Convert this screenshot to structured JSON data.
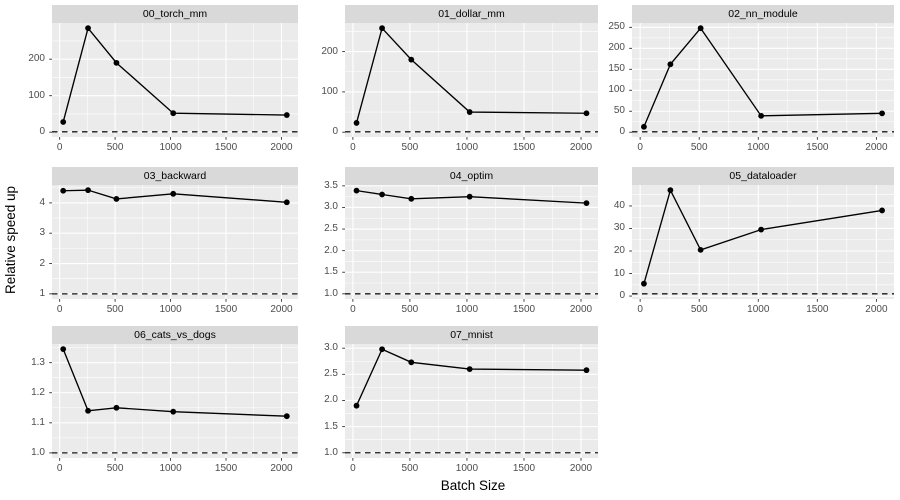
{
  "colors": {
    "panel_bg": "#EBEBEB",
    "strip_bg": "#D9D9D9",
    "grid": "#FFFFFF",
    "line": "#000000",
    "point": "#000000",
    "reference": "#1a1a1a",
    "tick_text": "#4D4D4D",
    "tick_mark": "#333333",
    "title_text": "#000000"
  },
  "chart_data": {
    "type": "line",
    "title": "",
    "xlabel": "Batch Size",
    "ylabel": "Relative speed up",
    "grid": true,
    "legend": false,
    "x": [
      32,
      256,
      512,
      1024,
      2048
    ],
    "xlim": [
      -69,
      2149
    ],
    "xticks": [
      0,
      500,
      1000,
      1500,
      2000
    ],
    "xtick_labels": [
      "0",
      "500",
      "1000",
      "1500",
      "2000"
    ],
    "x_minor": [
      250,
      750,
      1250,
      1750
    ],
    "reference_line_y": 1,
    "reference_line_style": "dashed",
    "facets": [
      {
        "title": "00_torch_mm",
        "values": [
          28,
          285,
          190,
          52,
          47
        ],
        "ylim": [
          -13.2,
          299.2
        ],
        "yticks": [
          0,
          100,
          200
        ],
        "ytick_labels": [
          "0",
          "100",
          "200"
        ]
      },
      {
        "title": "01_dollar_mm",
        "values": [
          23,
          258,
          180,
          50,
          47
        ],
        "ylim": [
          -11.9,
          270.9
        ],
        "yticks": [
          0,
          100,
          200
        ],
        "ytick_labels": [
          "0",
          "100",
          "200"
        ]
      },
      {
        "title": "02_nn_module",
        "values": [
          13,
          162,
          248,
          39,
          45
        ],
        "ylim": [
          -11.4,
          260.4
        ],
        "yticks": [
          0,
          50,
          100,
          150,
          200,
          250
        ],
        "ytick_labels": [
          "0",
          "50",
          "100",
          "150",
          "200",
          "250"
        ]
      },
      {
        "title": "03_backward",
        "values": [
          4.4,
          4.42,
          4.13,
          4.3,
          4.02
        ],
        "ylim": [
          0.83,
          4.59
        ],
        "yticks": [
          1,
          2,
          3,
          4
        ],
        "ytick_labels": [
          "1",
          "2",
          "3",
          "4"
        ]
      },
      {
        "title": "04_optim",
        "values": [
          3.39,
          3.3,
          3.2,
          3.25,
          3.1
        ],
        "ylim": [
          0.88,
          3.52
        ],
        "yticks": [
          1,
          1.5,
          2,
          2.5,
          3,
          3.5
        ],
        "ytick_labels": [
          "1.0",
          "1.5",
          "2.0",
          "2.5",
          "3.0",
          "3.5"
        ]
      },
      {
        "title": "05_dataloader",
        "values": [
          5.5,
          47,
          20.5,
          29.5,
          38
        ],
        "ylim": [
          -1.3,
          49.3
        ],
        "yticks": [
          0,
          10,
          20,
          30,
          40
        ],
        "ytick_labels": [
          "0",
          "10",
          "20",
          "30",
          "40"
        ]
      },
      {
        "title": "06_cats_vs_dogs",
        "values": [
          1.345,
          1.14,
          1.15,
          1.137,
          1.122
        ],
        "ylim": [
          0.983,
          1.362
        ],
        "yticks": [
          1,
          1.1,
          1.2,
          1.3
        ],
        "ytick_labels": [
          "1.0",
          "1.1",
          "1.2",
          "1.3"
        ]
      },
      {
        "title": "07_mnist",
        "values": [
          1.9,
          2.98,
          2.73,
          2.6,
          2.58
        ],
        "ylim": [
          0.9,
          3.08
        ],
        "yticks": [
          1,
          1.5,
          2,
          2.5,
          3
        ],
        "ytick_labels": [
          "1.0",
          "1.5",
          "2.0",
          "2.5",
          "3.0"
        ]
      }
    ]
  }
}
